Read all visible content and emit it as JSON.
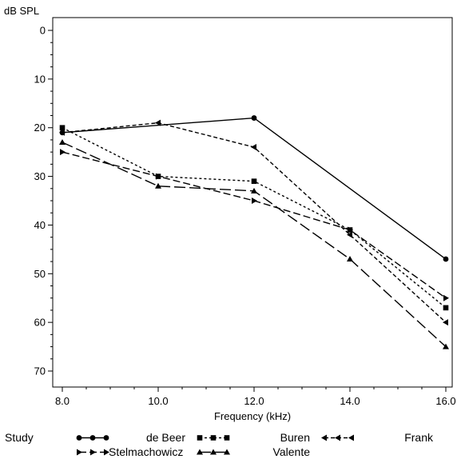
{
  "chart_data": {
    "type": "line",
    "title": "",
    "xlabel": "Frequency (kHz)",
    "ylabel": "dB SPL",
    "x": [
      8.0,
      10.0,
      12.0,
      14.0,
      16.0
    ],
    "xlim": [
      8.0,
      16.0
    ],
    "ylim": [
      0,
      70
    ],
    "y_inverted": true,
    "xticks": [
      "8.0",
      "10.0",
      "12.0",
      "14.0",
      "16.0"
    ],
    "yticks": [
      "0",
      "10",
      "20",
      "30",
      "40",
      "50",
      "60",
      "70"
    ],
    "grid": false,
    "legend_position": "bottom",
    "series": [
      {
        "name": "de Beer",
        "marker": "square",
        "dash": "short",
        "points": [
          [
            8.0,
            20
          ],
          [
            10.0,
            30
          ],
          [
            12.0,
            31
          ],
          [
            14.0,
            41
          ],
          [
            16.0,
            57
          ]
        ]
      },
      {
        "name": "Buren",
        "marker": "triangle-left",
        "dash": "medium",
        "points": [
          [
            8.0,
            21
          ],
          [
            10.0,
            19
          ],
          [
            12.0,
            24
          ],
          [
            14.0,
            42
          ],
          [
            16.0,
            60
          ]
        ]
      },
      {
        "name": "Frank",
        "marker": "triangle-right",
        "dash": "long",
        "points": [
          [
            8.0,
            25
          ],
          [
            10.0,
            30
          ],
          [
            12.0,
            35
          ],
          [
            14.0,
            41
          ],
          [
            16.0,
            55
          ]
        ]
      },
      {
        "name": "Stelmachowicz",
        "marker": "triangle-up",
        "dash": "longer",
        "points": [
          [
            8.0,
            23
          ],
          [
            10.0,
            32
          ],
          [
            12.0,
            33
          ],
          [
            14.0,
            47
          ],
          [
            16.0,
            65
          ]
        ]
      },
      {
        "name": "Valente",
        "marker": "circle",
        "dash": "solid",
        "points": [
          [
            8.0,
            21
          ],
          [
            12.0,
            18
          ],
          [
            16.0,
            47
          ]
        ]
      }
    ],
    "legend": {
      "title": "Study",
      "rows": [
        [
          "de Beer",
          "Buren",
          "Frank"
        ],
        [
          "Stelmachowicz",
          "Valente"
        ]
      ]
    }
  }
}
